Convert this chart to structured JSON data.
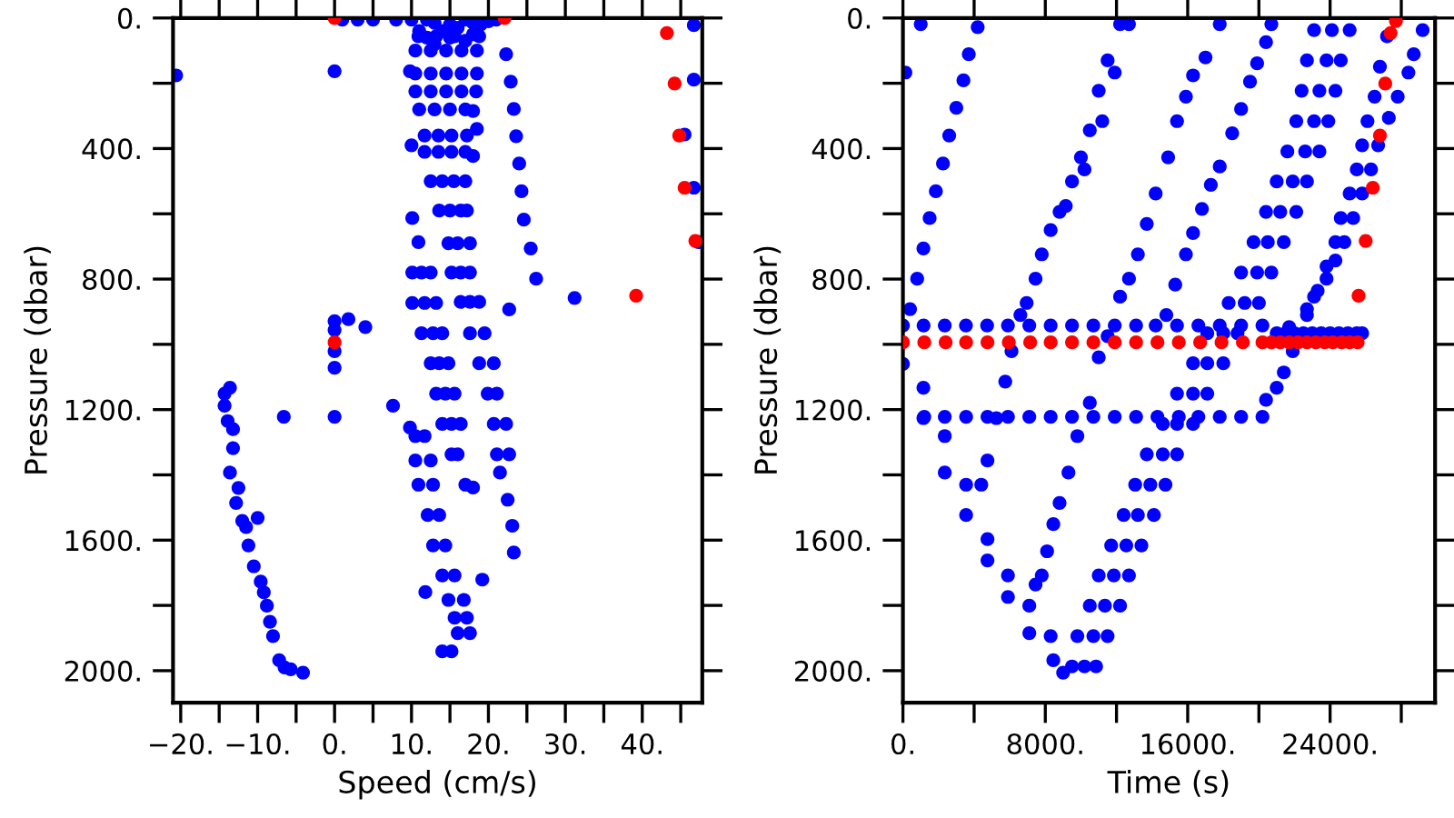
{
  "chart_data": [
    {
      "type": "scatter",
      "xlabel": "Speed (cm/s)",
      "ylabel": "Pressure (dbar)",
      "marker": "circle",
      "grid": false,
      "xlim": [
        -21,
        47.8
      ],
      "ylim": [
        2098,
        0
      ],
      "xticks": [
        {
          "value": -20,
          "label": "−20."
        },
        {
          "value": -15,
          "label": null
        },
        {
          "value": -10,
          "label": "−10."
        },
        {
          "value": -5,
          "label": null
        },
        {
          "value": 0,
          "label": "0."
        },
        {
          "value": 5,
          "label": null
        },
        {
          "value": 10,
          "label": "10."
        },
        {
          "value": 15,
          "label": null
        },
        {
          "value": 20,
          "label": "20."
        },
        {
          "value": 25,
          "label": null
        },
        {
          "value": 30,
          "label": "30."
        },
        {
          "value": 35,
          "label": null
        },
        {
          "value": 40,
          "label": "40."
        },
        {
          "value": 45,
          "label": null
        }
      ],
      "yticks": [
        {
          "value": 0,
          "label": "0."
        },
        {
          "value": 200,
          "label": null
        },
        {
          "value": 400,
          "label": "400."
        },
        {
          "value": 600,
          "label": null
        },
        {
          "value": 800,
          "label": "800."
        },
        {
          "value": 1000,
          "label": null
        },
        {
          "value": 1200,
          "label": "1200."
        },
        {
          "value": 1400,
          "label": null
        },
        {
          "value": 1600,
          "label": "1600."
        },
        {
          "value": 1800,
          "label": null
        },
        {
          "value": 2000,
          "label": "2000."
        }
      ],
      "series": [
        {
          "color": "#0000ff",
          "x": [
            1,
            3,
            5,
            8,
            10,
            12,
            13,
            15,
            17,
            18,
            20,
            21,
            11,
            12,
            13,
            14,
            15,
            16,
            17,
            18,
            19,
            -20.6,
            0,
            10.9,
            13.2,
            15.6,
            18.8,
            10.5,
            12.5,
            14.5,
            16.5,
            18.5,
            10.5,
            12.5,
            14.5,
            16.5,
            18.5,
            10.5,
            12.5,
            14.5,
            16.5,
            18.4,
            11,
            13,
            15,
            17,
            11.7,
            13.5,
            15.2,
            17.2,
            11.7,
            13.5,
            15.2,
            17,
            12.5,
            14,
            15.5,
            17,
            13.6,
            15,
            16.4,
            17.2,
            14.8,
            16,
            17.6,
            15.2,
            16.4,
            17.6,
            16.4,
            17.6,
            18.8,
            9.8,
            10,
            18,
            18.5,
            18,
            10.1,
            10.9,
            10.1,
            11.3,
            12.5,
            10.1,
            11.7,
            13.2,
            11.3,
            12.8,
            14,
            12.5,
            13.6,
            14.8,
            13.2,
            14.4,
            15.6,
            14,
            15.2,
            16.4,
            15.2,
            16,
            17.6,
            19.5,
            18.8,
            20.7,
            19.9,
            21.1,
            20.7,
            22.3,
            21.1,
            22.7,
            21.5,
            10.5,
            11.7,
            10.5,
            12.5,
            10.9,
            12.8,
            12.1,
            13.6,
            12.8,
            14.4,
            14,
            15.6,
            14.8,
            16.8,
            15.6,
            17.2,
            16,
            17.6,
            14,
            15.2,
            17,
            18,
            22.5,
            23.1,
            23.3,
            19.2,
            11.8,
            7.6,
            9.8,
            22.3,
            22.9,
            23.3,
            23.6,
            24,
            24.3,
            24.6,
            25.5,
            26.2,
            31.2,
            22.7,
            0,
            0,
            0,
            0,
            1.8,
            4,
            0,
            -6.6,
            -14.3,
            -13.6,
            -14.3,
            -13.9,
            -13.2,
            -13.6,
            -12.8,
            -12,
            -10,
            -11.2,
            -9.6,
            -8.8,
            -8,
            -7.2,
            -5.7,
            -4.1,
            -13.2,
            -12.5,
            -11.5,
            -10.5,
            -9.2,
            -8.4,
            -6.5,
            46.7,
            46.7,
            45.5,
            46.7,
            47.3
          ],
          "values": [
            5,
            5,
            5,
            5,
            5,
            5,
            15,
            20,
            5,
            15,
            10,
            5,
            40,
            60,
            80,
            40,
            60,
            30,
            70,
            50,
            20,
            176,
            163,
            56,
            56,
            56,
            56,
            100,
            100,
            100,
            100,
            100,
            170,
            170,
            170,
            170,
            170,
            225,
            225,
            225,
            225,
            225,
            280,
            280,
            280,
            280,
            360,
            360,
            360,
            360,
            410,
            410,
            410,
            410,
            500,
            500,
            500,
            500,
            590,
            590,
            590,
            590,
            690,
            690,
            690,
            780,
            780,
            780,
            870,
            870,
            870,
            163,
            390,
            285,
            340,
            423,
            613,
            687,
            780,
            780,
            780,
            873,
            873,
            873,
            966,
            966,
            966,
            1058,
            1058,
            1058,
            1151,
            1151,
            1151,
            1244,
            1244,
            1244,
            1337,
            1337,
            966,
            966,
            1058,
            1058,
            1151,
            1151,
            1244,
            1244,
            1337,
            1337,
            1393,
            1281,
            1281,
            1356,
            1356,
            1430,
            1430,
            1523,
            1523,
            1616,
            1616,
            1708,
            1708,
            1783,
            1783,
            1838,
            1838,
            1885,
            1885,
            1941,
            1941,
            1430,
            1439,
            1476,
            1556,
            1638,
            1721,
            1759,
            1188,
            1255,
            111,
            195,
            279,
            362,
            446,
            531,
            618,
            706,
            799,
            858,
            893,
            929,
            956,
            1021,
            1072,
            923,
            947,
            1222,
            1222,
            1151,
            1133,
            1188,
            1235,
            1318,
            1393,
            1486,
            1541,
            1532,
            1616,
            1727,
            1801,
            1894,
            1968,
            1996,
            2006,
            1260,
            1440,
            1560,
            1680,
            1760,
            1850,
            1990,
            22,
            189,
            357,
            520,
            687
          ]
        },
        {
          "color": "#ff0000",
          "x": [
            0,
            22.1,
            43.2,
            44.2,
            44.8,
            45.5,
            46.9,
            39.2,
            0
          ],
          "values": [
            0,
            0,
            46,
            201,
            360,
            520,
            683,
            851,
            994
          ]
        }
      ]
    },
    {
      "type": "scatter",
      "xlabel": "Time (s)",
      "ylabel": "Pressure (dbar)",
      "marker": "circle",
      "grid": false,
      "xlim": [
        0,
        29900
      ],
      "ylim": [
        2098,
        0
      ],
      "xticks": [
        {
          "value": 0,
          "label": "0."
        },
        {
          "value": 4000,
          "label": null
        },
        {
          "value": 8000,
          "label": "8000."
        },
        {
          "value": 12000,
          "label": null
        },
        {
          "value": 16000,
          "label": "16000."
        },
        {
          "value": 20000,
          "label": null
        },
        {
          "value": 24000,
          "label": "24000."
        },
        {
          "value": 28000,
          "label": null
        }
      ],
      "yticks": [
        {
          "value": 0,
          "label": "0."
        },
        {
          "value": 200,
          "label": null
        },
        {
          "value": 400,
          "label": "400."
        },
        {
          "value": 600,
          "label": null
        },
        {
          "value": 800,
          "label": "800."
        },
        {
          "value": 1000,
          "label": null
        },
        {
          "value": 1200,
          "label": "1200."
        },
        {
          "value": 1400,
          "label": null
        },
        {
          "value": 1600,
          "label": "1600."
        },
        {
          "value": 1800,
          "label": null
        },
        {
          "value": 2000,
          "label": "2000."
        }
      ],
      "series": [
        {
          "color": "#0000ff",
          "x": [
            0,
            1160,
            2350,
            3540,
            4730,
            5900,
            7100,
            8300,
            9500,
            10700,
            11900,
            13100,
            14200,
            15400,
            16600,
            17800,
            19000,
            20200,
            21000,
            21500,
            22000,
            22500,
            23000,
            23500,
            24000,
            24500,
            25000,
            25500,
            25800,
            0,
            1200,
            2350,
            3550,
            4750,
            5900,
            7100,
            8300,
            9500,
            10700,
            11900,
            13100,
            14300,
            15500,
            16600,
            17800,
            19000,
            20200,
            4200,
            3700,
            3400,
            3000,
            2600,
            2250,
            1850,
            1500,
            1150,
            800,
            400,
            140,
            1000,
            1150,
            1150,
            2350,
            2350,
            3550,
            3550,
            4750,
            4750,
            5900,
            5900,
            7100,
            7100,
            8300,
            8450,
            9000,
            9500,
            10200,
            10850,
            9800,
            10700,
            11500,
            10500,
            11350,
            12200,
            11000,
            11850,
            12700,
            11700,
            12550,
            13400,
            12400,
            13200,
            14100,
            13050,
            13900,
            14750,
            13700,
            14600,
            15400,
            14600,
            15400,
            16300,
            15400,
            16300,
            17100,
            16300,
            17100,
            18000,
            17100,
            18000,
            18800,
            18300,
            19200,
            20000,
            19000,
            19900,
            20700,
            19700,
            20500,
            21400,
            20400,
            21200,
            22100,
            21000,
            21900,
            22700,
            21600,
            22600,
            23400,
            22100,
            23100,
            23900,
            22400,
            23400,
            24300,
            22700,
            23800,
            24600,
            23100,
            24100,
            25100,
            12200,
            11500,
            11000,
            10500,
            10000,
            9500,
            8800,
            8300,
            7800,
            7450,
            6950,
            6600,
            6100,
            5750,
            5250,
            4750,
            4400,
            12700,
            11900,
            11200,
            10200,
            9150,
            17800,
            17000,
            16300,
            15900,
            15400,
            14900,
            14200,
            13700,
            13200,
            12700,
            12200,
            11500,
            11000,
            10500,
            9800,
            9300,
            8800,
            8450,
            8100,
            7800,
            7450,
            20700,
            20400,
            19900,
            19500,
            19000,
            18500,
            17800,
            17300,
            16800,
            16300,
            15900,
            15300,
            14800,
            29200,
            28700,
            28400,
            27800,
            27300,
            26700,
            26300,
            25800,
            25300,
            24800,
            24300,
            23800,
            23100,
            22700,
            21900,
            21400,
            21000,
            20400,
            27200,
            26800,
            26500,
            26100,
            25800,
            25500,
            25100,
            24600,
            24300,
            23800,
            23300,
            22700,
            21700
          ],
          "values": [
            942,
            942,
            942,
            942,
            942,
            942,
            942,
            942,
            942,
            942,
            942,
            942,
            942,
            942,
            942,
            942,
            942,
            942,
            966,
            966,
            966,
            966,
            966,
            966,
            966,
            966,
            966,
            966,
            966,
            1060,
            1222,
            1222,
            1222,
            1222,
            1222,
            1222,
            1222,
            1222,
            1222,
            1222,
            1222,
            1222,
            1222,
            1222,
            1222,
            1222,
            1222,
            28,
            111,
            191,
            275,
            360,
            446,
            531,
            613,
            706,
            799,
            892,
            167,
            19,
            1133,
            1226,
            1281,
            1393,
            1430,
            1523,
            1597,
            1662,
            1708,
            1774,
            1801,
            1885,
            1894,
            1968,
            2006,
            1987,
            1987,
            1987,
            1894,
            1894,
            1894,
            1801,
            1801,
            1801,
            1708,
            1708,
            1708,
            1616,
            1616,
            1616,
            1523,
            1523,
            1523,
            1430,
            1430,
            1430,
            1337,
            1337,
            1337,
            1244,
            1244,
            1244,
            1151,
            1151,
            1151,
            1058,
            1058,
            1058,
            966,
            966,
            966,
            873,
            873,
            873,
            780,
            780,
            780,
            687,
            687,
            687,
            594,
            594,
            594,
            501,
            501,
            501,
            409,
            409,
            409,
            316,
            316,
            316,
            223,
            223,
            223,
            130,
            130,
            130,
            37,
            37,
            37,
            19,
            130,
            223,
            344,
            427,
            501,
            594,
            650,
            724,
            799,
            873,
            910,
            1021,
            1114,
            1226,
            1356,
            1430,
            19,
            167,
            316,
            464,
            576,
            19,
            121,
            176,
            241,
            316,
            427,
            538,
            631,
            724,
            799,
            854,
            975,
            1040,
            1179,
            1281,
            1393,
            1486,
            1551,
            1634,
            1708,
            1736,
            19,
            74,
            139,
            195,
            279,
            353,
            455,
            511,
            585,
            659,
            724,
            817,
            910,
            37,
            111,
            167,
            241,
            306,
            390,
            464,
            538,
            613,
            687,
            743,
            799,
            854,
            910,
            1021,
            1086,
            1133,
            1170,
            56,
            149,
            241,
            316,
            390,
            464,
            538,
            613,
            687,
            761,
            836,
            892,
            947
          ]
        },
        {
          "color": "#ff0000",
          "x": [
            0,
            1200,
            2400,
            3550,
            4750,
            5950,
            7150,
            8300,
            9500,
            10700,
            11900,
            13100,
            14300,
            15500,
            16700,
            17900,
            19100,
            20200,
            20700,
            21200,
            21700,
            22200,
            22700,
            23200,
            23700,
            24150,
            24650,
            25100,
            25550,
            27700,
            27400,
            27100,
            26800,
            26400,
            26000,
            25600
          ],
          "values": [
            994,
            994,
            994,
            994,
            994,
            994,
            994,
            994,
            994,
            994,
            994,
            994,
            994,
            994,
            994,
            994,
            994,
            994,
            994,
            994,
            994,
            994,
            994,
            994,
            994,
            994,
            994,
            994,
            994,
            9,
            46,
            201,
            360,
            520,
            683,
            851
          ]
        }
      ]
    }
  ]
}
